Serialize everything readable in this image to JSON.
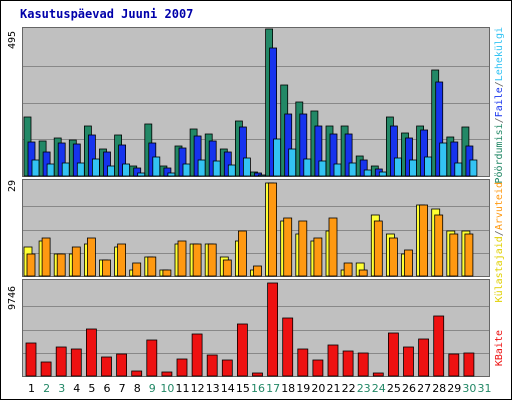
{
  "chart_data": [
    {
      "type": "bar",
      "title": "Kasutuspäevad Juuni 2007",
      "panel": "top",
      "ymax_label": "495",
      "categories": [
        "1",
        "2",
        "3",
        "4",
        "5",
        "6",
        "7",
        "8",
        "9",
        "10",
        "11",
        "12",
        "13",
        "14",
        "15",
        "16",
        "17",
        "18",
        "19",
        "20",
        "21",
        "22",
        "23",
        "24",
        "25",
        "26",
        "27",
        "28",
        "29",
        "30",
        "31"
      ],
      "weekend_days": [
        "2",
        "3",
        "9",
        "10",
        "16",
        "17",
        "23",
        "24",
        "30",
        "31"
      ],
      "series": [
        {
          "name": "Pöördumisi",
          "color": "#228866",
          "values": [
            198,
            118,
            127,
            120,
            168,
            92,
            137,
            35,
            174,
            35,
            101,
            157,
            140,
            92,
            184,
            12,
            495,
            306,
            250,
            218,
            168,
            167,
            66,
            35,
            198,
            145,
            170,
            356,
            133,
            165,
            0
          ]
        },
        {
          "name": "Faile",
          "color": "#1633ee",
          "values": [
            116,
            80,
            110,
            107,
            138,
            80,
            104,
            28,
            110,
            28,
            94,
            135,
            119,
            80,
            165,
            10,
            430,
            208,
            209,
            170,
            143,
            143,
            55,
            25,
            170,
            128,
            156,
            316,
            115,
            102,
            0
          ]
        },
        {
          "name": "Lehekülgi",
          "color": "#33c3f3",
          "values": [
            55,
            40,
            45,
            45,
            57,
            33,
            40,
            10,
            65,
            10,
            42,
            54,
            50,
            36,
            60,
            5,
            125,
            92,
            58,
            50,
            40,
            45,
            20,
            12,
            62,
            55,
            65,
            110,
            45,
            55,
            0
          ]
        }
      ]
    },
    {
      "type": "bar",
      "panel": "middle",
      "ymax_label": "29",
      "categories": [
        "1",
        "2",
        "3",
        "4",
        "5",
        "6",
        "7",
        "8",
        "9",
        "10",
        "11",
        "12",
        "13",
        "14",
        "15",
        "16",
        "17",
        "18",
        "19",
        "20",
        "21",
        "22",
        "23",
        "24",
        "25",
        "26",
        "27",
        "28",
        "29",
        "30",
        "31"
      ],
      "series": [
        {
          "name": "Külastajaid",
          "color": "#ffff33",
          "values": [
            9,
            11,
            7,
            7,
            10,
            5,
            9,
            2,
            6,
            2,
            10,
            10,
            10,
            6,
            11,
            2,
            29,
            17,
            13,
            11,
            14,
            2,
            4,
            19,
            13,
            7,
            22,
            21,
            14,
            14,
            0
          ]
        },
        {
          "name": "Arvuteid",
          "color": "#ff9911",
          "values": [
            7,
            12,
            7,
            9,
            12,
            5,
            10,
            4,
            6,
            2,
            11,
            10,
            10,
            5,
            14,
            3,
            29,
            18,
            17,
            12,
            18,
            4,
            2,
            17,
            12,
            8,
            22,
            19,
            13,
            13,
            0
          ]
        }
      ]
    },
    {
      "type": "bar",
      "panel": "bottom",
      "ymax_label": "9746",
      "categories": [
        "1",
        "2",
        "3",
        "4",
        "5",
        "6",
        "7",
        "8",
        "9",
        "10",
        "11",
        "12",
        "13",
        "14",
        "15",
        "16",
        "17",
        "18",
        "19",
        "20",
        "21",
        "22",
        "23",
        "24",
        "25",
        "26",
        "27",
        "28",
        "29",
        "30",
        "31"
      ],
      "series": [
        {
          "name": "KBaite",
          "color": "#ee1111",
          "values": [
            3450,
            1510,
            3040,
            2880,
            4950,
            1950,
            2350,
            520,
            3740,
            420,
            1750,
            4420,
            2150,
            1650,
            5450,
            300,
            9746,
            6110,
            2820,
            1650,
            3240,
            2640,
            2440,
            320,
            4520,
            3040,
            3850,
            6310,
            2320,
            2390,
            0
          ]
        }
      ]
    }
  ]
}
